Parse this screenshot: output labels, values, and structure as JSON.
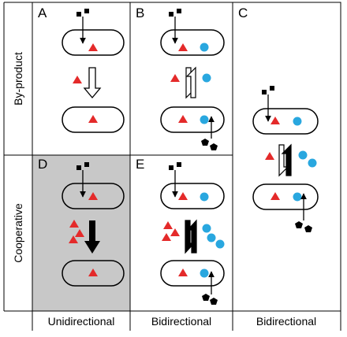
{
  "panels": {
    "a": "A",
    "b": "B",
    "c": "C",
    "d": "D",
    "e": "E"
  },
  "rows": {
    "top": "By-product",
    "bottom": "Cooperative"
  },
  "columns": {
    "col1": "Unidirectional",
    "col2": "Bidirectional",
    "col3": "Bidirectional"
  },
  "colors": {
    "triangle": "#e42a2a",
    "circle": "#29a7df",
    "shaded_panel": "#c8c8c8",
    "ink": "#000000"
  },
  "icons": {
    "substrate": "small-black-square",
    "producer_output": "red-triangle",
    "partner_output": "blue-circle",
    "partner_input": "black-pentagon",
    "flow": "arrow"
  }
}
